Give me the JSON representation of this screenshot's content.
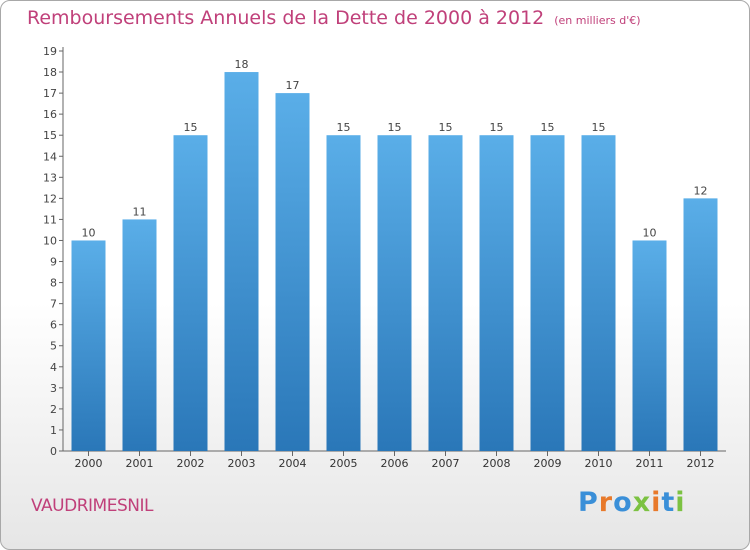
{
  "chart_data": {
    "type": "bar",
    "title": "Remboursements Annuels de la Dette de 2000 à 2012",
    "unit_note": "(en milliers d'€)",
    "categories": [
      "2000",
      "2001",
      "2002",
      "2003",
      "2004",
      "2005",
      "2006",
      "2007",
      "2008",
      "2009",
      "2010",
      "2011",
      "2012"
    ],
    "values": [
      10,
      11,
      15,
      18,
      17,
      15,
      15,
      15,
      15,
      15,
      15,
      10,
      12
    ],
    "data_labels": [
      "10",
      "11",
      "15",
      "18",
      "17",
      "15",
      "15",
      "15",
      "15",
      "15",
      "15",
      "10",
      "12"
    ],
    "xlabel": "",
    "ylabel": "",
    "ylim": [
      0,
      19
    ],
    "yticks": [
      0,
      1,
      2,
      3,
      4,
      5,
      6,
      7,
      8,
      9,
      10,
      11,
      12,
      13,
      14,
      15,
      16,
      17,
      18,
      19
    ],
    "grid": false,
    "bar_color": "#5aaee8",
    "bar_color_dark": "#2a77b8"
  },
  "footer": {
    "commune": "VAUDRIMESNIL",
    "brand": [
      "P",
      "r",
      "o",
      "x",
      "i",
      "t",
      "i"
    ],
    "brand_colors": [
      "#3a8fd8",
      "#e8792a",
      "#3a8fd8",
      "#7cc242",
      "#e8792a",
      "#3a8fd8",
      "#7cc242"
    ]
  }
}
